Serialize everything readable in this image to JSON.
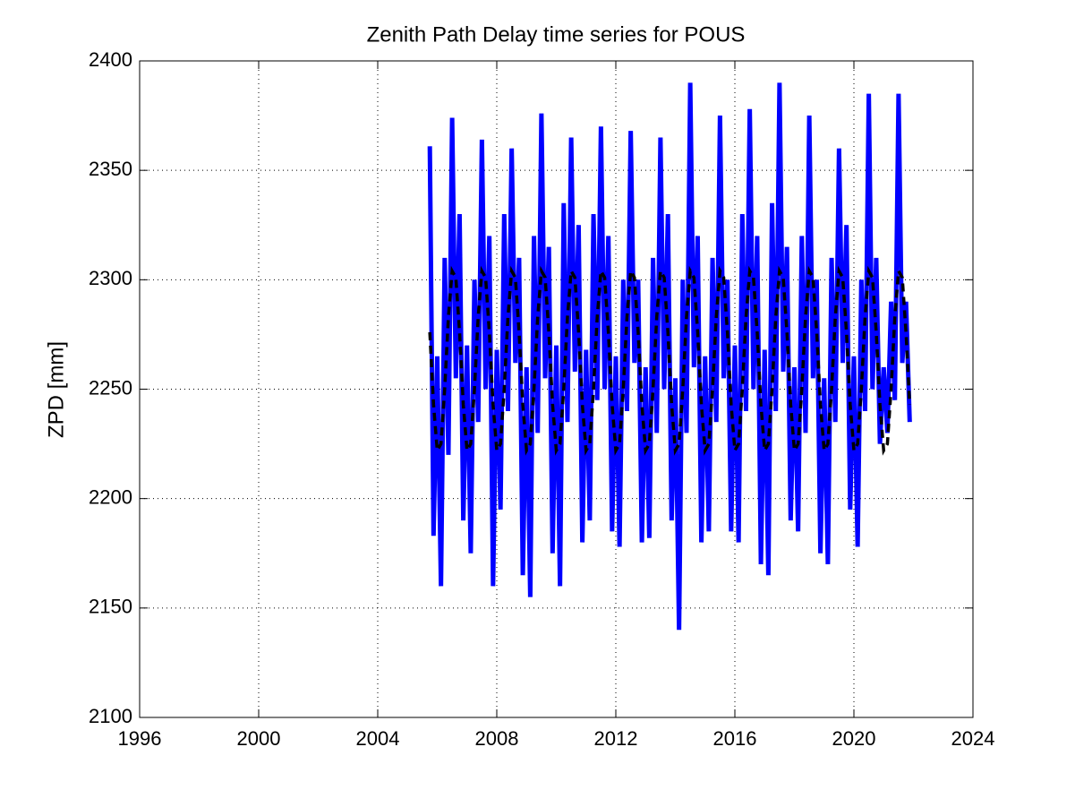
{
  "chart_data": {
    "type": "line",
    "title": "Zenith Path Delay time series for POUS",
    "ylabel": "ZPD [mm]",
    "xlim": [
      1996,
      2024
    ],
    "xticks": [
      1996,
      2000,
      2004,
      2008,
      2012,
      2016,
      2020,
      2024
    ],
    "ylim": [
      2100,
      2400
    ],
    "yticks": [
      2100,
      2150,
      2200,
      2250,
      2300,
      2350,
      2400
    ],
    "grid": true,
    "x": [
      2005.75,
      2005.875,
      2006,
      2006.125,
      2006.25,
      2006.375,
      2006.5,
      2006.625,
      2006.75,
      2006.875,
      2007,
      2007.125,
      2007.25,
      2007.375,
      2007.5,
      2007.625,
      2007.75,
      2007.875,
      2008,
      2008.125,
      2008.25,
      2008.375,
      2008.5,
      2008.625,
      2008.75,
      2008.875,
      2009,
      2009.125,
      2009.25,
      2009.375,
      2009.5,
      2009.625,
      2009.75,
      2009.875,
      2010,
      2010.125,
      2010.25,
      2010.375,
      2010.5,
      2010.625,
      2010.75,
      2010.875,
      2011,
      2011.125,
      2011.25,
      2011.375,
      2011.5,
      2011.625,
      2011.75,
      2011.875,
      2012,
      2012.125,
      2012.25,
      2012.375,
      2012.5,
      2012.625,
      2012.75,
      2012.875,
      2013,
      2013.125,
      2013.25,
      2013.375,
      2013.5,
      2013.625,
      2013.75,
      2013.875,
      2014,
      2014.125,
      2014.25,
      2014.375,
      2014.5,
      2014.625,
      2014.75,
      2014.875,
      2015,
      2015.125,
      2015.25,
      2015.375,
      2015.5,
      2015.625,
      2015.75,
      2015.875,
      2016,
      2016.125,
      2016.25,
      2016.375,
      2016.5,
      2016.625,
      2016.75,
      2016.875,
      2017,
      2017.125,
      2017.25,
      2017.375,
      2017.5,
      2017.625,
      2017.75,
      2017.875,
      2018,
      2018.125,
      2018.25,
      2018.375,
      2018.5,
      2018.625,
      2018.75,
      2018.875,
      2019,
      2019.125,
      2019.25,
      2019.375,
      2019.5,
      2019.625,
      2019.75,
      2019.875,
      2020,
      2020.125,
      2020.25,
      2020.375,
      2020.5,
      2020.625,
      2020.75,
      2020.875,
      2021,
      2021.125,
      2021.25,
      2021.375,
      2021.5,
      2021.625,
      2021.75,
      2021.875
    ],
    "series": [
      {
        "color": "#0000ff",
        "width": 5,
        "dashed": false,
        "values": [
          2361,
          2183,
          2265,
          2160,
          2310,
          2220,
          2374,
          2255,
          2330,
          2190,
          2270,
          2175,
          2300,
          2235,
          2364,
          2250,
          2320,
          2160,
          2268,
          2195,
          2330,
          2240,
          2360,
          2262,
          2310,
          2165,
          2260,
          2155,
          2320,
          2230,
          2376,
          2255,
          2315,
          2175,
          2270,
          2160,
          2335,
          2235,
          2365,
          2258,
          2325,
          2180,
          2268,
          2190,
          2330,
          2245,
          2370,
          2250,
          2320,
          2185,
          2265,
          2178,
          2300,
          2240,
          2368,
          2262,
          2300,
          2180,
          2260,
          2182,
          2310,
          2230,
          2365,
          2250,
          2330,
          2190,
          2255,
          2140,
          2300,
          2230,
          2390,
          2260,
          2320,
          2180,
          2265,
          2185,
          2310,
          2235,
          2375,
          2255,
          2300,
          2185,
          2270,
          2180,
          2330,
          2240,
          2378,
          2250,
          2320,
          2170,
          2268,
          2165,
          2335,
          2240,
          2390,
          2258,
          2315,
          2190,
          2260,
          2185,
          2320,
          2230,
          2375,
          2255,
          2300,
          2175,
          2255,
          2170,
          2310,
          2235,
          2360,
          2262,
          2325,
          2195,
          2265,
          2178,
          2300,
          2240,
          2385,
          2250,
          2310,
          2225,
          2260,
          2230,
          2290,
          2245,
          2385,
          2262,
          2290,
          2235
        ]
      },
      {
        "color": "#000000",
        "width": 3.5,
        "dashed": true,
        "values": [
          2276,
          2243,
          2222,
          2225,
          2250,
          2283,
          2304,
          2301,
          2276,
          2243,
          2222,
          2225,
          2250,
          2283,
          2304,
          2301,
          2276,
          2243,
          2222,
          2225,
          2250,
          2283,
          2304,
          2301,
          2276,
          2243,
          2222,
          2225,
          2250,
          2283,
          2304,
          2301,
          2276,
          2243,
          2222,
          2225,
          2250,
          2283,
          2304,
          2301,
          2276,
          2243,
          2222,
          2225,
          2250,
          2283,
          2304,
          2301,
          2276,
          2243,
          2222,
          2225,
          2250,
          2283,
          2304,
          2301,
          2276,
          2243,
          2222,
          2225,
          2250,
          2283,
          2304,
          2301,
          2276,
          2243,
          2222,
          2225,
          2250,
          2283,
          2304,
          2301,
          2276,
          2243,
          2222,
          2225,
          2250,
          2283,
          2304,
          2301,
          2276,
          2243,
          2222,
          2225,
          2250,
          2283,
          2304,
          2301,
          2276,
          2243,
          2222,
          2225,
          2250,
          2283,
          2304,
          2301,
          2276,
          2243,
          2222,
          2225,
          2250,
          2283,
          2304,
          2301,
          2276,
          2243,
          2222,
          2225,
          2250,
          2283,
          2304,
          2301,
          2276,
          2243,
          2222,
          2225,
          2250,
          2283,
          2304,
          2301,
          2276,
          2243,
          2222,
          2225,
          2250,
          2283,
          2304,
          2301,
          2276,
          2243
        ]
      }
    ]
  }
}
